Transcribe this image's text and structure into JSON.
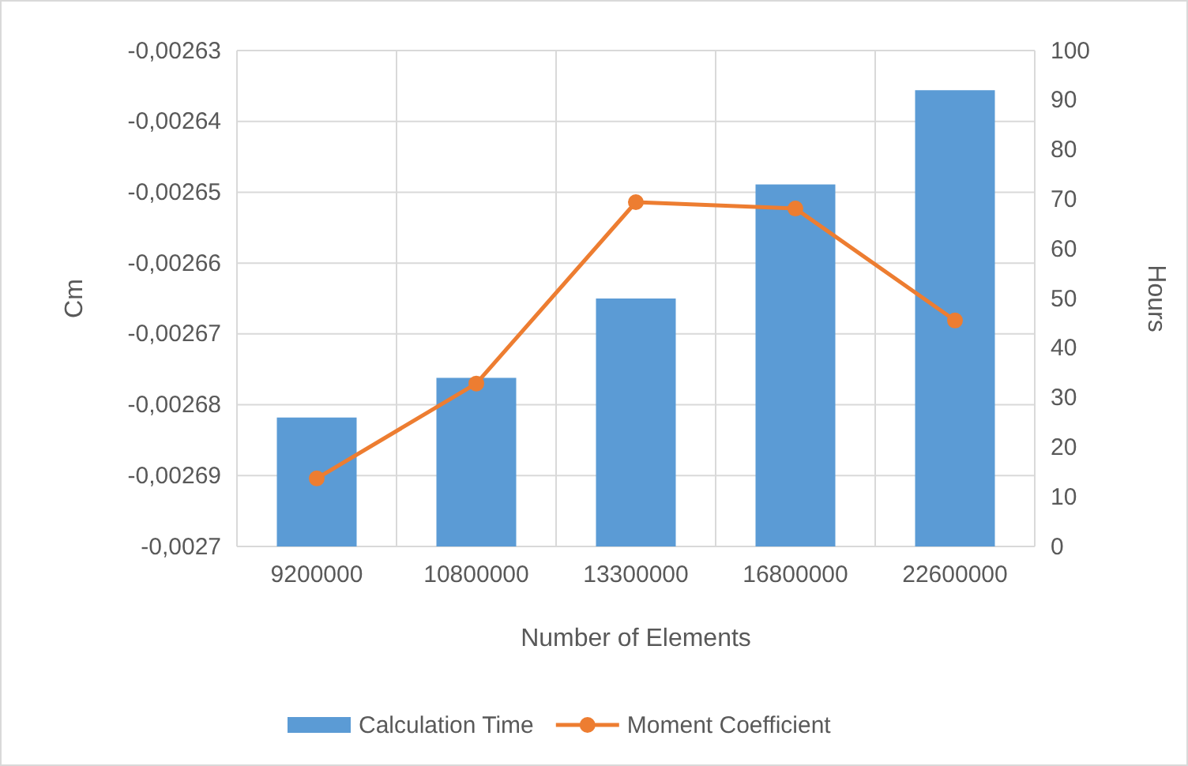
{
  "chart_data": {
    "type": "bar",
    "categories": [
      "9200000",
      "10800000",
      "13300000",
      "16800000",
      "22600000"
    ],
    "xlabel": "Number of Elements",
    "ylabel": "Cm",
    "y2label": "Hours",
    "series": [
      {
        "name": "Calculation Time",
        "axis": "y2",
        "color": "#5b9bd5",
        "values": [
          26,
          34,
          50,
          73,
          92
        ]
      },
      {
        "name": "Moment Coefficient",
        "type": "line",
        "color": "#ed7d31",
        "marker": "circle",
        "values": [
          -0.0026904,
          -0.002677,
          -0.0026514,
          -0.0026523,
          -0.0026681
        ]
      }
    ],
    "ylim": [
      -0.0027,
      -0.00263
    ],
    "yticks": [
      {
        "value": -0.0027,
        "label": "-0,0027"
      },
      {
        "value": -0.00269,
        "label": "-0,00269"
      },
      {
        "value": -0.00268,
        "label": "-0,00268"
      },
      {
        "value": -0.00267,
        "label": "-0,00267"
      },
      {
        "value": -0.00266,
        "label": "-0,00266"
      },
      {
        "value": -0.00265,
        "label": "-0,00265"
      },
      {
        "value": -0.00264,
        "label": "-0,00264"
      },
      {
        "value": -0.00263,
        "label": "-0,00263"
      }
    ],
    "y2lim": [
      0,
      100
    ],
    "y2ticks": [
      0,
      10,
      20,
      30,
      40,
      50,
      60,
      70,
      80,
      90,
      100
    ],
    "grid": true,
    "legend": "bottom"
  }
}
